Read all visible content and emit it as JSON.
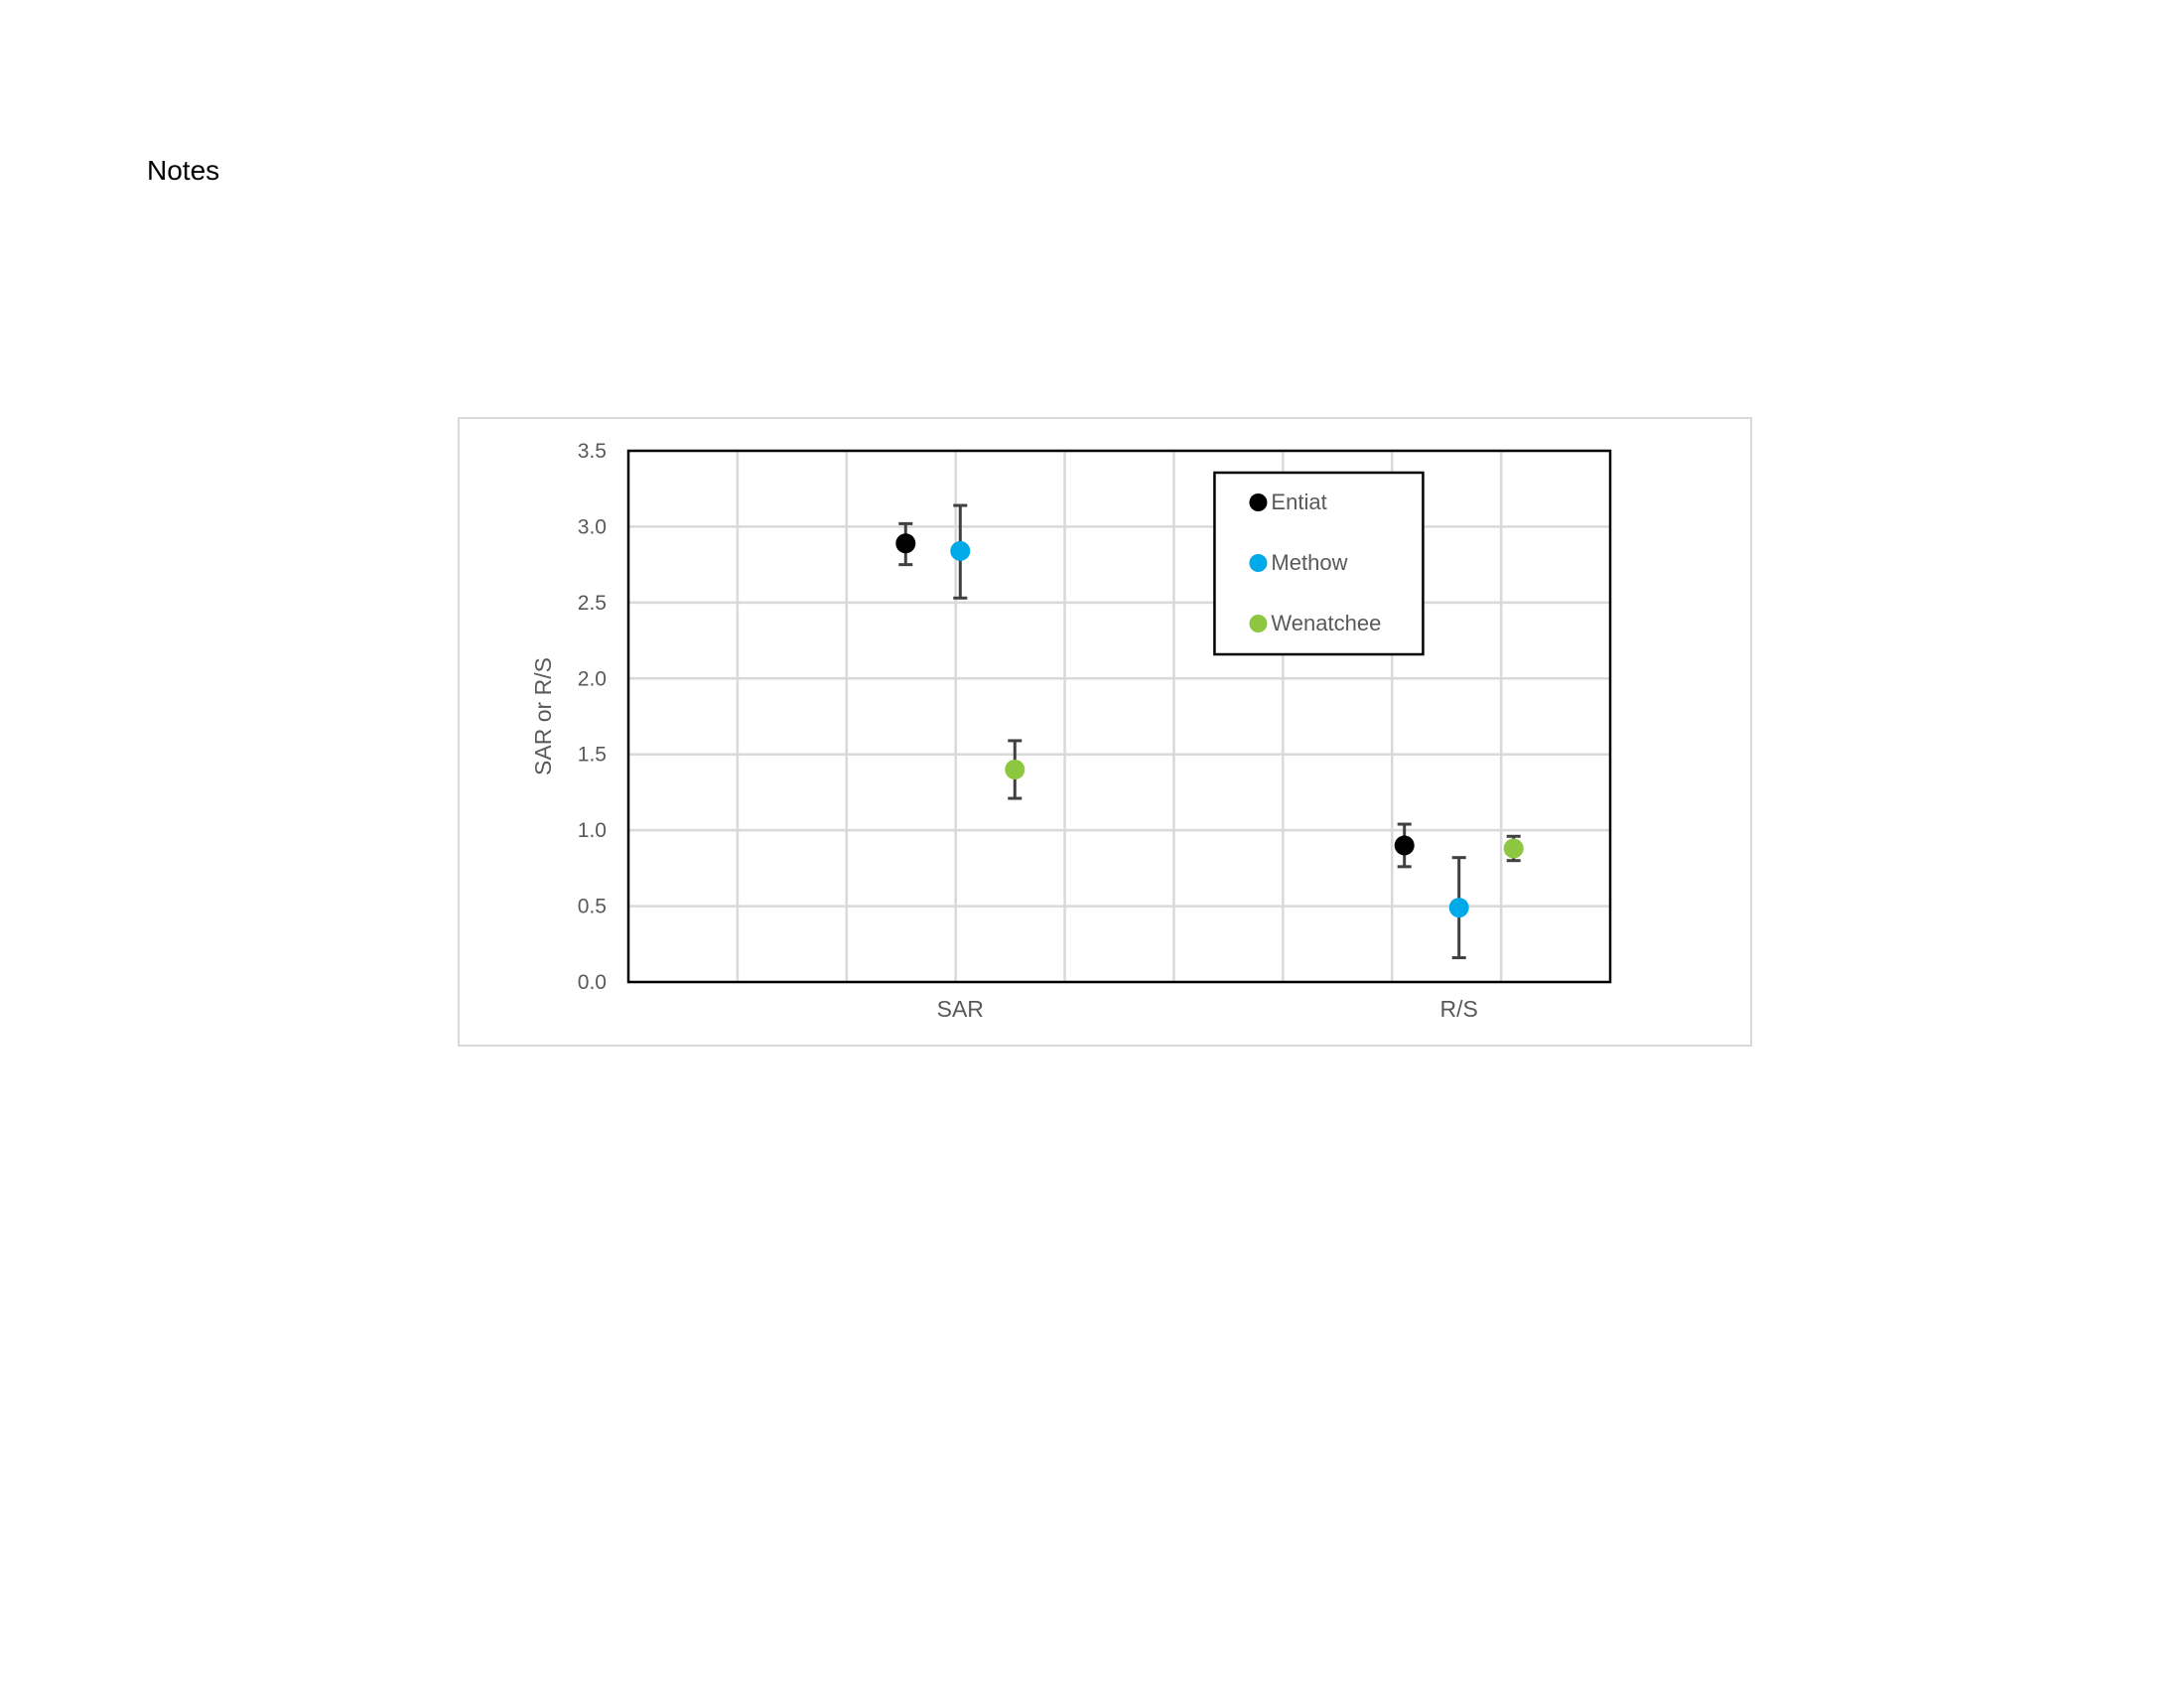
{
  "page": {
    "notes_label": "Notes"
  },
  "chart_data": {
    "type": "scatter",
    "categories": [
      "SAR",
      "R/S"
    ],
    "ylabel": "SAR or R/S",
    "ylim": [
      0,
      3.5
    ],
    "yticks": [
      0.0,
      0.5,
      1.0,
      1.5,
      2.0,
      2.5,
      3.0,
      3.5
    ],
    "grid": true,
    "legend_position": "top-right",
    "series": [
      {
        "name": "Entiat",
        "color": "#000000",
        "values": [
          2.89,
          0.9
        ],
        "lower": [
          2.75,
          0.76
        ],
        "upper": [
          3.02,
          1.04
        ]
      },
      {
        "name": "Methow",
        "color": "#00a9e8",
        "values": [
          2.84,
          0.49
        ],
        "lower": [
          2.53,
          0.16
        ],
        "upper": [
          3.14,
          0.82
        ]
      },
      {
        "name": "Wenatchee",
        "color": "#8dc63f",
        "values": [
          1.4,
          0.88
        ],
        "lower": [
          1.21,
          0.8
        ],
        "upper": [
          1.59,
          0.96
        ]
      }
    ]
  }
}
